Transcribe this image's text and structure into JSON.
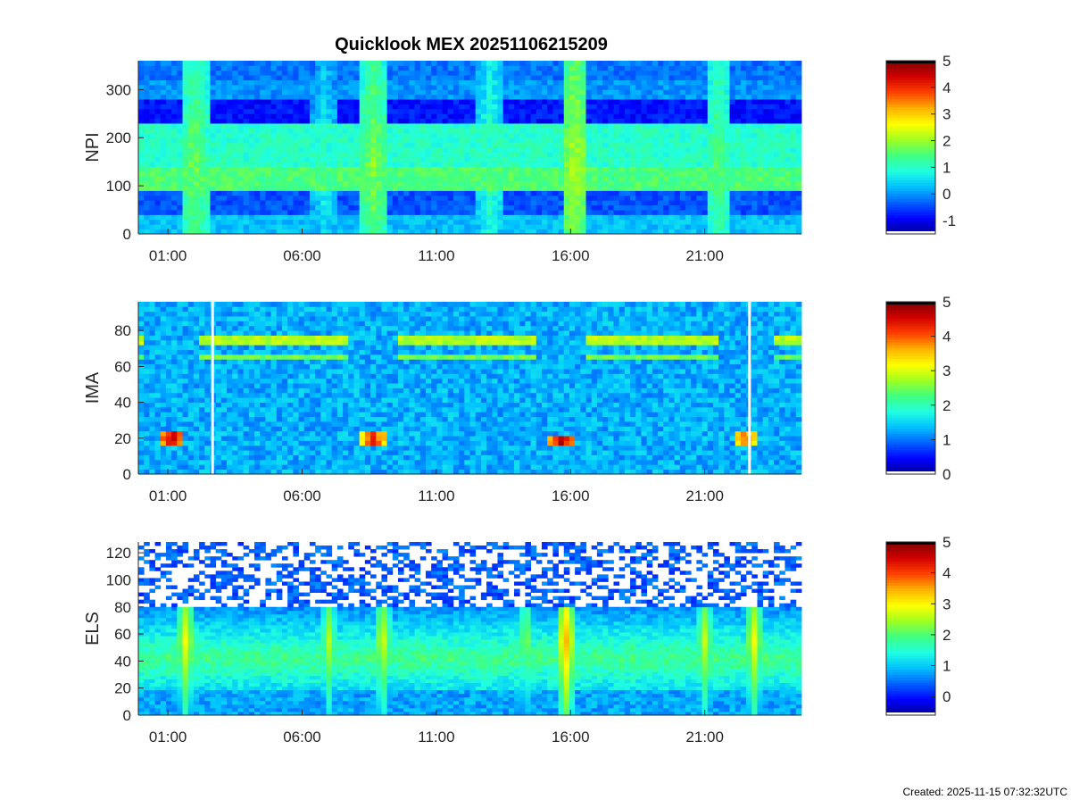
{
  "title": "Quicklook MEX 20251106215209",
  "footer": "Created: 2025-11-15 07:32:32UTC",
  "colormap": [
    "#00008f",
    "#0000ff",
    "#0060ff",
    "#00c0ff",
    "#20ffe0",
    "#40ff80",
    "#a0ff20",
    "#ffff00",
    "#ffb000",
    "#ff4000",
    "#d00000",
    "#800000"
  ],
  "chart_data": [
    {
      "type": "heatmap",
      "ylabel": "NPI",
      "x_tick_labels": [
        "01:00",
        "06:00",
        "11:00",
        "16:00",
        "21:00"
      ],
      "ylim": [
        0,
        360
      ],
      "y_ticks": [
        0,
        100,
        200,
        300
      ],
      "colorbar": {
        "ticks": [
          -1,
          0,
          1,
          2,
          3,
          4,
          5
        ],
        "range": [
          -1.5,
          5
        ]
      },
      "bands": [
        {
          "y": [
            0,
            40
          ],
          "level": 0.3
        },
        {
          "y": [
            40,
            90
          ],
          "level": -0.4
        },
        {
          "y": [
            90,
            145
          ],
          "level": 1.5
        },
        {
          "y": [
            145,
            230
          ],
          "level": 1.0
        },
        {
          "y": [
            230,
            280
          ],
          "level": -0.8
        },
        {
          "y": [
            280,
            320
          ],
          "level": 0.0
        },
        {
          "y": [
            320,
            360
          ],
          "level": -0.2
        }
      ],
      "events": [
        {
          "time": "02:00",
          "level": 1.8
        },
        {
          "time": "06:50",
          "level": 0.9
        },
        {
          "time": "08:40",
          "level": 1.9
        },
        {
          "time": "13:00",
          "level": 1.2
        },
        {
          "time": "16:10",
          "level": 2.2
        },
        {
          "time": "21:30",
          "level": 1.6
        }
      ]
    },
    {
      "type": "heatmap",
      "ylabel": "IMA",
      "x_tick_labels": [
        "01:00",
        "06:00",
        "11:00",
        "16:00",
        "21:00"
      ],
      "ylim": [
        0,
        96
      ],
      "y_ticks": [
        0,
        20,
        40,
        60,
        80
      ],
      "colorbar": {
        "ticks": [
          0,
          1,
          2,
          3,
          4,
          5
        ],
        "range": [
          0,
          5
        ]
      },
      "background_level": 1.3,
      "ion_lines": [
        {
          "y": 74,
          "level": 2.8
        },
        {
          "y": 65,
          "level": 2.5
        }
      ],
      "low_energy_spots": [
        {
          "time": "01:10",
          "y": 20,
          "level": 4.5
        },
        {
          "time": "08:40",
          "y": 20,
          "level": 4.2
        },
        {
          "time": "15:40",
          "y": 19,
          "level": 4.6
        },
        {
          "time": "22:30",
          "y": 20,
          "level": 3.9
        }
      ],
      "gaps": [
        "02:40",
        "22:40"
      ]
    },
    {
      "type": "heatmap",
      "ylabel": "ELS",
      "x_tick_labels": [
        "01:00",
        "06:00",
        "11:00",
        "16:00",
        "21:00"
      ],
      "ylim": [
        0,
        128
      ],
      "y_ticks": [
        0,
        20,
        40,
        60,
        80,
        100,
        120
      ],
      "colorbar": {
        "ticks": [
          0,
          1,
          2,
          3,
          4,
          5
        ],
        "range": [
          -0.6,
          5
        ]
      },
      "core_band": {
        "y": [
          20,
          75
        ],
        "peak_y": 42,
        "level": 1.9
      },
      "bursts": [
        {
          "time": "01:40",
          "level": 3.0
        },
        {
          "time": "07:00",
          "level": 2.6
        },
        {
          "time": "09:00",
          "level": 2.9
        },
        {
          "time": "14:20",
          "level": 2.5
        },
        {
          "time": "15:50",
          "level": 3.5
        },
        {
          "time": "21:00",
          "level": 2.7
        },
        {
          "time": "22:50",
          "level": 3.0
        }
      ]
    }
  ]
}
